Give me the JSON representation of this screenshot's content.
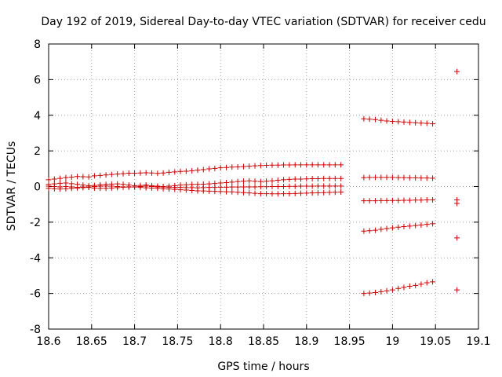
{
  "chart_data": {
    "type": "scatter",
    "title": "Day 192 of 2019, Sidereal Day-to-day VTEC variation (SDTVAR) for receiver cedu",
    "xlabel": "GPS time / hours",
    "ylabel": "SDTVAR / TECUs",
    "xlim": [
      18.6,
      19.1
    ],
    "ylim": [
      -8,
      8
    ],
    "xticks": [
      "18.6",
      "18.65",
      "18.7",
      "18.75",
      "18.8",
      "18.85",
      "18.9",
      "18.95",
      "19",
      "19.05",
      "19.1"
    ],
    "yticks": [
      "8",
      "6",
      "4",
      "2",
      "0",
      "-2",
      "-4",
      "-6",
      "-8"
    ],
    "grid": true,
    "marker": "plus",
    "color": "#cc0000",
    "series": [
      {
        "name": "s1",
        "x": [
          18.6,
          18.6067,
          18.6133,
          18.62,
          18.6267,
          18.6333,
          18.64,
          18.6467,
          18.6533,
          18.66,
          18.6667,
          18.6733,
          18.68,
          18.6867,
          18.6933,
          18.7,
          18.7067,
          18.7133,
          18.72,
          18.7267,
          18.7333,
          18.74,
          18.7467,
          18.7533,
          18.76,
          18.7667,
          18.7733,
          18.78,
          18.7867,
          18.7933,
          18.8,
          18.8067,
          18.8133,
          18.82,
          18.8267,
          18.8333,
          18.84,
          18.8467,
          18.8533,
          18.86,
          18.8667,
          18.8733,
          18.88,
          18.8867,
          18.8933,
          18.9,
          18.9067,
          18.9133,
          18.92,
          18.9267,
          18.9333,
          18.94
        ],
        "y": [
          0.38,
          0.42,
          0.46,
          0.5,
          0.53,
          0.56,
          0.55,
          0.54,
          0.6,
          0.62,
          0.65,
          0.68,
          0.7,
          0.72,
          0.75,
          0.75,
          0.76,
          0.77,
          0.76,
          0.74,
          0.76,
          0.8,
          0.82,
          0.85,
          0.86,
          0.88,
          0.92,
          0.95,
          0.99,
          1.02,
          1.05,
          1.07,
          1.09,
          1.1,
          1.12,
          1.14,
          1.16,
          1.18,
          1.19,
          1.2,
          1.2,
          1.21,
          1.21,
          1.22,
          1.22,
          1.22,
          1.22,
          1.22,
          1.22,
          1.22,
          1.22,
          1.22
        ]
      },
      {
        "name": "s2",
        "x": [
          18.6,
          18.6067,
          18.6133,
          18.62,
          18.6267,
          18.6333,
          18.64,
          18.6467,
          18.6533,
          18.66,
          18.6667,
          18.6733,
          18.68,
          18.6867,
          18.6933,
          18.7,
          18.7067,
          18.7133,
          18.72,
          18.7267,
          18.7333,
          18.74,
          18.7467,
          18.7533,
          18.76,
          18.7667,
          18.7733,
          18.78,
          18.7867,
          18.7933,
          18.8,
          18.8067,
          18.8133,
          18.82,
          18.8267,
          18.8333,
          18.84,
          18.8467,
          18.8533,
          18.86,
          18.8667,
          18.8733,
          18.88,
          18.8867,
          18.8933,
          18.9,
          18.9067,
          18.9133,
          18.92,
          18.9267,
          18.9333,
          18.94
        ],
        "y": [
          0.12,
          0.15,
          0.18,
          0.2,
          0.16,
          0.12,
          0.08,
          0.05,
          0.06,
          0.1,
          0.12,
          0.14,
          0.15,
          0.12,
          0.08,
          0.05,
          0.06,
          0.08,
          0.05,
          0.02,
          0.0,
          0.02,
          0.05,
          0.08,
          0.1,
          0.12,
          0.12,
          0.13,
          0.15,
          0.17,
          0.2,
          0.22,
          0.25,
          0.28,
          0.3,
          0.32,
          0.3,
          0.28,
          0.3,
          0.32,
          0.35,
          0.38,
          0.4,
          0.42,
          0.42,
          0.43,
          0.44,
          0.44,
          0.45,
          0.45,
          0.45,
          0.45
        ]
      },
      {
        "name": "s3",
        "x": [
          18.6,
          18.6067,
          18.6133,
          18.62,
          18.6267,
          18.6333,
          18.64,
          18.6467,
          18.6533,
          18.66,
          18.6667,
          18.6733,
          18.68,
          18.6867,
          18.6933,
          18.7,
          18.7067,
          18.7133,
          18.72,
          18.7267,
          18.7333,
          18.74,
          18.7467,
          18.7533,
          18.76,
          18.7667,
          18.7733,
          18.78,
          18.7867,
          18.7933,
          18.8,
          18.8067,
          18.8133,
          18.82,
          18.8267,
          18.8333,
          18.84,
          18.8467,
          18.8533,
          18.86,
          18.8667,
          18.8733,
          18.88,
          18.8867,
          18.8933,
          18.9,
          18.9067,
          18.9133,
          18.92,
          18.9267,
          18.9333,
          18.94
        ],
        "y": [
          0.02,
          0.0,
          -0.02,
          0.0,
          -0.02,
          -0.05,
          -0.03,
          -0.02,
          0.0,
          0.02,
          0.03,
          0.02,
          0.0,
          -0.02,
          -0.03,
          -0.02,
          0.0,
          0.02,
          0.0,
          -0.02,
          -0.03,
          -0.04,
          -0.05,
          -0.05,
          -0.06,
          -0.06,
          -0.07,
          -0.06,
          -0.05,
          -0.05,
          -0.04,
          -0.04,
          -0.03,
          -0.03,
          -0.02,
          -0.02,
          -0.02,
          -0.01,
          -0.01,
          0.0,
          0.0,
          0.0,
          0.01,
          0.01,
          0.02,
          0.02,
          0.02,
          0.03,
          0.03,
          0.03,
          0.03,
          0.03
        ]
      },
      {
        "name": "s4",
        "x": [
          18.6,
          18.6067,
          18.6133,
          18.62,
          18.6267,
          18.6333,
          18.64,
          18.6467,
          18.6533,
          18.66,
          18.6667,
          18.6733,
          18.68,
          18.6867,
          18.6933,
          18.7,
          18.7067,
          18.7133,
          18.72,
          18.7267,
          18.7333,
          18.74,
          18.7467,
          18.7533,
          18.76,
          18.7667,
          18.7733,
          18.78,
          18.7867,
          18.7933,
          18.8,
          18.8067,
          18.8133,
          18.82,
          18.8267,
          18.8333,
          18.84,
          18.8467,
          18.8533,
          18.86,
          18.8667,
          18.8733,
          18.88,
          18.8867,
          18.8933,
          18.9,
          18.9067,
          18.9133,
          18.92,
          18.9267,
          18.9333,
          18.94
        ],
        "y": [
          -0.1,
          -0.12,
          -0.14,
          -0.12,
          -0.1,
          -0.08,
          -0.06,
          -0.05,
          -0.08,
          -0.1,
          -0.1,
          -0.08,
          -0.06,
          -0.04,
          -0.02,
          -0.03,
          -0.05,
          -0.07,
          -0.08,
          -0.1,
          -0.12,
          -0.14,
          -0.16,
          -0.18,
          -0.2,
          -0.22,
          -0.24,
          -0.25,
          -0.26,
          -0.27,
          -0.28,
          -0.29,
          -0.3,
          -0.32,
          -0.34,
          -0.36,
          -0.38,
          -0.4,
          -0.4,
          -0.41,
          -0.41,
          -0.4,
          -0.4,
          -0.39,
          -0.38,
          -0.37,
          -0.36,
          -0.35,
          -0.34,
          -0.33,
          -0.32,
          -0.31
        ]
      },
      {
        "name": "s5",
        "x": [
          18.9667,
          18.9733,
          18.98,
          18.9867,
          18.9933,
          19.0,
          19.0067,
          19.0133,
          19.02,
          19.0267,
          19.0333,
          19.04,
          19.0467,
          19.075
        ],
        "y": [
          3.8,
          3.78,
          3.76,
          3.72,
          3.68,
          3.66,
          3.64,
          3.62,
          3.6,
          3.58,
          3.56,
          3.55,
          3.52,
          6.45
        ]
      },
      {
        "name": "s6",
        "x": [
          18.9667,
          18.9733,
          18.98,
          18.9867,
          18.9933,
          19.0,
          19.0067,
          19.0133,
          19.02,
          19.0267,
          19.0333,
          19.04,
          19.0467,
          19.075
        ],
        "y": [
          0.5,
          0.51,
          0.51,
          0.51,
          0.51,
          0.51,
          0.5,
          0.5,
          0.49,
          0.49,
          0.48,
          0.48,
          0.47,
          -0.75
        ]
      },
      {
        "name": "s7",
        "x": [
          18.9667,
          18.9733,
          18.98,
          18.9867,
          18.9933,
          19.0,
          19.0067,
          19.0133,
          19.02,
          19.0267,
          19.0333,
          19.04,
          19.0467,
          19.075
        ],
        "y": [
          -0.8,
          -0.8,
          -0.8,
          -0.79,
          -0.79,
          -0.78,
          -0.78,
          -0.77,
          -0.77,
          -0.76,
          -0.76,
          -0.75,
          -0.75,
          -0.95
        ]
      },
      {
        "name": "s8",
        "x": [
          18.9667,
          18.9733,
          18.98,
          18.9867,
          18.9933,
          19.0,
          19.0067,
          19.0133,
          19.02,
          19.0267,
          19.0333,
          19.04,
          19.0467,
          19.075
        ],
        "y": [
          -2.5,
          -2.48,
          -2.45,
          -2.4,
          -2.36,
          -2.32,
          -2.28,
          -2.25,
          -2.22,
          -2.19,
          -2.16,
          -2.12,
          -2.09,
          -2.88
        ]
      },
      {
        "name": "s9",
        "x": [
          18.9667,
          18.9733,
          18.98,
          18.9867,
          18.9933,
          19.0,
          19.0067,
          19.0133,
          19.02,
          19.0267,
          19.0333,
          19.04,
          19.0467,
          19.075
        ],
        "y": [
          -6.0,
          -5.98,
          -5.95,
          -5.9,
          -5.85,
          -5.8,
          -5.72,
          -5.66,
          -5.6,
          -5.55,
          -5.48,
          -5.4,
          -5.35,
          -5.8
        ]
      }
    ]
  }
}
